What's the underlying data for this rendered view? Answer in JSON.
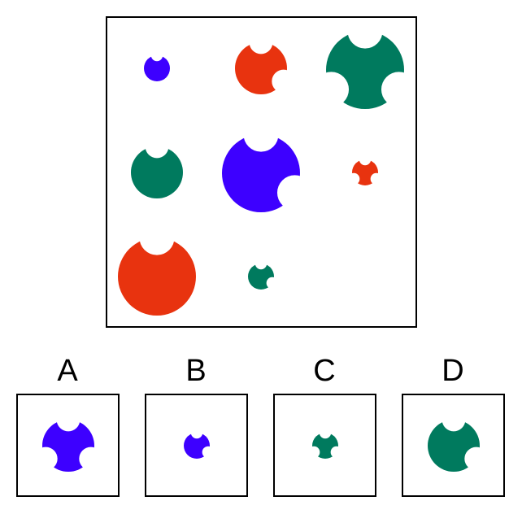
{
  "colors": {
    "blue": "#3d00ff",
    "red": "#e8330f",
    "green": "#007a5e"
  },
  "puzzle": {
    "grid": [
      [
        {
          "color": "blue",
          "notches": 1
        },
        {
          "color": "red",
          "notches": 2
        },
        {
          "color": "green",
          "notches": 3
        }
      ],
      [
        {
          "color": "green",
          "notches": 1
        },
        {
          "color": "blue",
          "notches": 2
        },
        {
          "color": "red",
          "notches": 3
        }
      ],
      [
        {
          "color": "red",
          "notches": 1
        },
        {
          "color": "green",
          "notches": 2
        },
        null
      ]
    ]
  },
  "options": [
    {
      "label": "A",
      "color": "blue",
      "notches": 3
    },
    {
      "label": "B",
      "color": "blue",
      "notches": 2
    },
    {
      "label": "C",
      "color": "green",
      "notches": 3
    },
    {
      "label": "D",
      "color": "green",
      "notches": 2
    }
  ]
}
